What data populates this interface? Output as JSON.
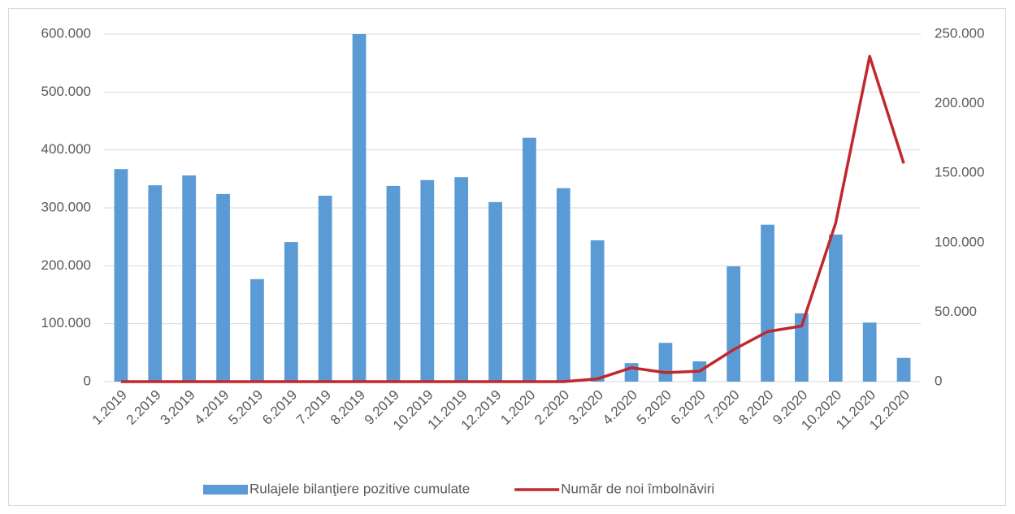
{
  "chart_data": {
    "type": "bar_line",
    "categories": [
      "1.2019",
      "2.2019",
      "3.2019",
      "4.2019",
      "5.2019",
      "6.2019",
      "7.2019",
      "8.2019",
      "9.2019",
      "10.2019",
      "11.2019",
      "12.2019",
      "1.2020",
      "2.2020",
      "3.2020",
      "4.2020",
      "5.2020",
      "6.2020",
      "7.2020",
      "8.2020",
      "9.2020",
      "10.2020",
      "11.2020",
      "12.2020"
    ],
    "series": [
      {
        "name": "Rulajele bilanţiere pozitive cumulate",
        "type": "bar",
        "color": "#5b9bd5",
        "axis": "y",
        "values": [
          367000,
          339000,
          356000,
          324000,
          177000,
          241000,
          321000,
          600000,
          338000,
          348000,
          353000,
          310000,
          421000,
          334000,
          244000,
          32000,
          67000,
          35000,
          199000,
          271000,
          118000,
          254000,
          102000,
          41000
        ]
      },
      {
        "name": "Număr de noi îmbolnăviri",
        "type": "line",
        "color": "#c0282d",
        "axis": "y2",
        "values": [
          0,
          0,
          0,
          0,
          0,
          0,
          0,
          0,
          0,
          0,
          0,
          0,
          0,
          0,
          2000,
          10000,
          6500,
          7500,
          23000,
          36000,
          40000,
          114000,
          234000,
          157000
        ]
      }
    ],
    "ylim": [
      0,
      600000
    ],
    "yticks": [
      0,
      {
        "value": 100000,
        "label": "100.000"
      },
      {
        "value": 200000,
        "label": "200.000"
      },
      {
        "value": 300000,
        "label": "300.000"
      },
      {
        "value": 400000,
        "label": "400.000"
      },
      {
        "value": 500000,
        "label": "500.000"
      },
      {
        "value": 600000,
        "label": "600.000"
      }
    ],
    "y2lim": [
      0,
      250000
    ],
    "y2ticks": [
      0,
      {
        "value": 50000,
        "label": "50.000"
      },
      {
        "value": 100000,
        "label": "100.000"
      },
      {
        "value": 150000,
        "label": "150.000"
      },
      {
        "value": 200000,
        "label": "200.000"
      },
      {
        "value": 250000,
        "label": "250.000"
      }
    ],
    "grid": true,
    "legend": "bottom"
  }
}
